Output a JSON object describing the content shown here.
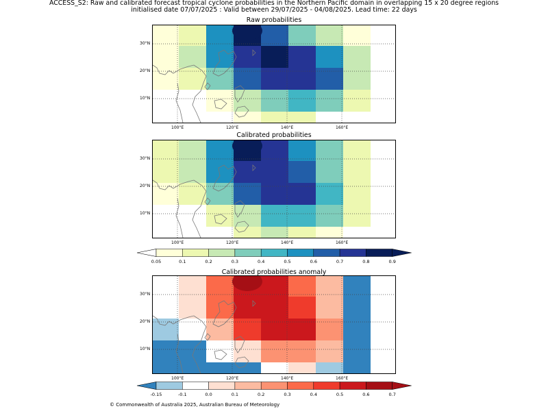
{
  "header": {
    "line1": "ACCESS_S2: Raw and calibrated forecast tropical cyclone probabilities in the Northern Pacific domain in overlapping 15 x 20 degree regions",
    "line2": "initialised date 07/07/2025 :  Valid between 29/07/2025 - 04/08/2025. Lead time: 22 days"
  },
  "maps": [
    {
      "title": "Raw probabilities",
      "x_ticks": [
        "100°E",
        "120°E",
        "140°E",
        "160°E"
      ],
      "y_ticks": [
        "30°N",
        "20°N",
        "10°N"
      ]
    },
    {
      "title": "Calibrated probabilities",
      "x_ticks": [
        "100°E",
        "120°E",
        "140°E",
        "160°E"
      ],
      "y_ticks": [
        "30°N",
        "20°N",
        "10°N"
      ]
    },
    {
      "title": "Calibrated probabilities anomaly",
      "x_ticks": [
        "100°E",
        "120°E",
        "140°E",
        "160°E"
      ],
      "y_ticks": [
        "30°N",
        "20°N",
        "10°N"
      ]
    }
  ],
  "colorbar_prob": {
    "labels": [
      "0.05",
      "0.1",
      "0.2",
      "0.3",
      "0.4",
      "0.5",
      "0.6",
      "0.7",
      "0.8",
      "0.9"
    ],
    "colors": [
      "#ffffff",
      "#ffffd9",
      "#edf8b1",
      "#c7e9b4",
      "#7fcdbb",
      "#41b6c4",
      "#1d91c0",
      "#225ea8",
      "#253494",
      "#081d58"
    ]
  },
  "colorbar_anom": {
    "labels": [
      "-0.15",
      "-0.1",
      "0.0",
      "0.1",
      "0.2",
      "0.3",
      "0.4",
      "0.5",
      "0.6",
      "0.7"
    ],
    "colors": [
      "#3182bd",
      "#9ecae1",
      "#ffffff",
      "#fee0d2",
      "#fcbba1",
      "#fc9272",
      "#fb6a4a",
      "#ef3b2c",
      "#cb181d",
      "#a50f15"
    ]
  },
  "grid_values": {
    "raw": [
      [
        "y",
        "yg",
        "b7",
        "n",
        "b8",
        "t",
        "g",
        "y"
      ],
      [
        "y",
        "g",
        "b7",
        "b9",
        "n",
        "b9",
        "b7",
        "g"
      ],
      [
        "y",
        "yg",
        "t",
        "b8",
        "b9",
        "b9",
        "b8",
        "g"
      ],
      [
        "-",
        "-",
        "y",
        "g",
        "t",
        "b6",
        "t",
        "yg"
      ],
      [
        "-",
        "-",
        "-",
        "y",
        "yg",
        "yg",
        "-",
        "-"
      ]
    ],
    "cal": [
      [
        "yg",
        "g",
        "b7",
        "n",
        "b9",
        "b7",
        "t",
        "yg"
      ],
      [
        "yg",
        "g",
        "b7",
        "b9",
        "b9",
        "b8",
        "t",
        "yg"
      ],
      [
        "y",
        "yg",
        "t",
        "b8",
        "b9",
        "b9",
        "b6",
        "yg"
      ],
      [
        "-",
        "-",
        "yg",
        "g",
        "b6",
        "b6",
        "t",
        "yg"
      ],
      [
        "-",
        "-",
        "-",
        "yg",
        "g",
        "yg",
        "y",
        "-"
      ]
    ],
    "anom": [
      [
        "w",
        "p1",
        "r4",
        "r6",
        "r6",
        "r4",
        "p2",
        "b1"
      ],
      [
        "w",
        "p1",
        "r4",
        "r6",
        "r6",
        "r5",
        "p2",
        "b1"
      ],
      [
        "b2",
        "w",
        "p2",
        "r5",
        "r6",
        "r6",
        "p3",
        "b1"
      ],
      [
        "b1",
        "b1",
        "w",
        "p1",
        "p3",
        "p3",
        "p2",
        "b1"
      ],
      [
        "b1",
        "b1",
        "b1",
        "b1",
        "w",
        "p1",
        "b2",
        "b1"
      ]
    ]
  },
  "footer": "© Commonwealth of Australia 2025, Australian Bureau of Meteorology"
}
